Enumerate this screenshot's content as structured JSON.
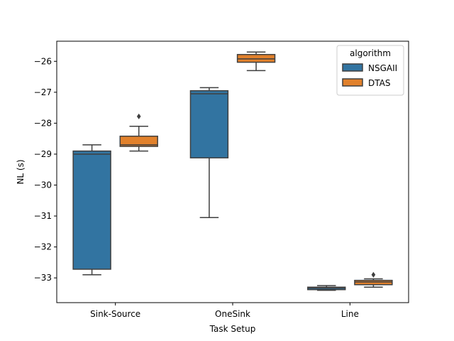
{
  "chart_data": {
    "type": "box",
    "xlabel": "Task Setup",
    "ylabel": "NL (s)",
    "ylim": [
      -33.8,
      -25.35
    ],
    "yticks": [
      -33,
      -32,
      -31,
      -30,
      -29,
      -28,
      -27,
      -26
    ],
    "categories": [
      "Sink-Source",
      "OneSink",
      "Line"
    ],
    "legend": {
      "title": "algorithm",
      "placement": "upper right"
    },
    "grid": false,
    "series": [
      {
        "name": "NSGAII",
        "color": "#3274a1",
        "boxes": [
          {
            "whisker_low": -32.9,
            "q1": -32.72,
            "median": -29.0,
            "q3": -28.9,
            "whisker_high": -28.7,
            "outliers": []
          },
          {
            "whisker_low": -31.05,
            "q1": -29.12,
            "median": -27.05,
            "q3": -26.95,
            "whisker_high": -26.85,
            "outliers": []
          },
          {
            "whisker_low": -33.4,
            "q1": -33.38,
            "median": -33.33,
            "q3": -33.3,
            "whisker_high": -33.25,
            "outliers": []
          }
        ]
      },
      {
        "name": "DTAS",
        "color": "#e1812c",
        "boxes": [
          {
            "whisker_low": -28.9,
            "q1": -28.75,
            "median": -28.7,
            "q3": -28.42,
            "whisker_high": -28.1,
            "outliers": [
              -27.78
            ]
          },
          {
            "whisker_low": -26.3,
            "q1": -26.03,
            "median": -25.92,
            "q3": -25.78,
            "whisker_high": -25.7,
            "outliers": []
          },
          {
            "whisker_low": -33.3,
            "q1": -33.22,
            "median": -33.13,
            "q3": -33.08,
            "whisker_high": -33.03,
            "outliers": [
              -32.9
            ]
          }
        ]
      }
    ]
  }
}
